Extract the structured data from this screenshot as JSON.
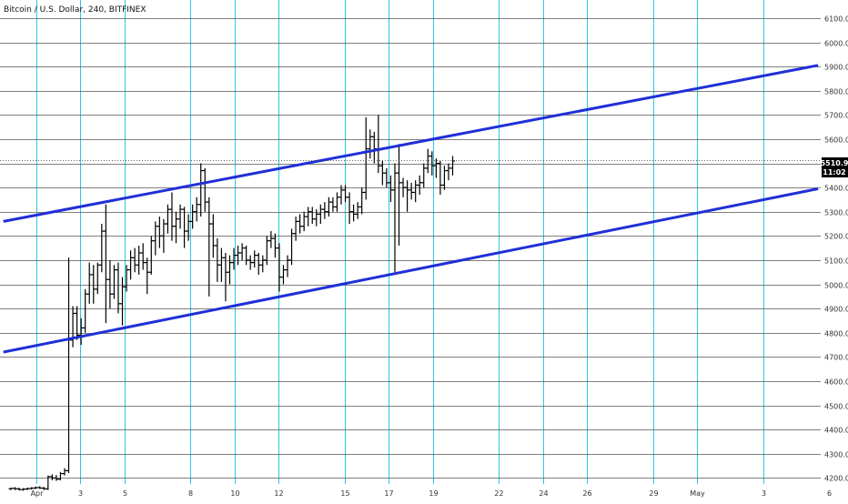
{
  "header": {
    "title": "Bitcoin / U.S. Dollar, 240, BITFINEX"
  },
  "price_badge": {
    "price": "5510.9",
    "countdown": "11:02"
  },
  "colors": {
    "grid_horizontal": "#555555",
    "grid_vertical": "#29c9e6",
    "trendline": "#1f2fd6",
    "bar": "#000000",
    "badge_bg": "#000000",
    "badge_text": "#ffffff"
  },
  "chart_data": {
    "type": "ohlc",
    "title": "Bitcoin / U.S. Dollar, 240, BITFINEX",
    "ylim": [
      4175,
      6175
    ],
    "y_ticks": [
      "6100.0",
      "6000.0",
      "5900.0",
      "5800.0",
      "5700.0",
      "5600.0",
      "5500.0",
      "5400.0",
      "5300.0",
      "5200.0",
      "5100.0",
      "5000.0",
      "4900.0",
      "4800.0",
      "4700.0",
      "4600.0",
      "4500.0",
      "4400.0",
      "4300.0",
      "4200.0"
    ],
    "x_ticks": [
      {
        "label": "Apr",
        "day": 1
      },
      {
        "label": "3",
        "day": 3
      },
      {
        "label": "5",
        "day": 5
      },
      {
        "label": "8",
        "day": 8
      },
      {
        "label": "10",
        "day": 10
      },
      {
        "label": "12",
        "day": 12
      },
      {
        "label": "15",
        "day": 15
      },
      {
        "label": "17",
        "day": 17
      },
      {
        "label": "19",
        "day": 19
      },
      {
        "label": "22",
        "day": 22
      },
      {
        "label": "24",
        "day": 24
      },
      {
        "label": "26",
        "day": 26
      },
      {
        "label": "29",
        "day": 29
      },
      {
        "label": "May",
        "day": 31
      },
      {
        "label": "3",
        "day": 34
      },
      {
        "label": "6",
        "day": 37
      }
    ],
    "current_price": 5510.9,
    "trendlines": [
      {
        "name": "upper-channel",
        "from": [
          -0.5,
          5260
        ],
        "to": [
          36.5,
          5905
        ]
      },
      {
        "name": "lower-channel",
        "from": [
          -0.5,
          4720
        ],
        "to": [
          36.5,
          5395
        ]
      }
    ],
    "ohlc": [
      [
        4155,
        4160,
        4150,
        4157
      ],
      [
        4157,
        4162,
        4150,
        4155
      ],
      [
        4155,
        4160,
        4148,
        4152
      ],
      [
        4152,
        4158,
        4147,
        4154
      ],
      [
        4154,
        4160,
        4150,
        4156
      ],
      [
        4156,
        4162,
        4152,
        4158
      ],
      [
        4158,
        4165,
        4154,
        4160
      ],
      [
        4160,
        4166,
        4155,
        4158
      ],
      [
        4158,
        4163,
        4150,
        4155
      ],
      [
        4155,
        4210,
        4150,
        4205
      ],
      [
        4205,
        4215,
        4190,
        4200
      ],
      [
        4200,
        4212,
        4188,
        4195
      ],
      [
        4195,
        4225,
        4190,
        4218
      ],
      [
        4218,
        4240,
        4210,
        4230
      ],
      [
        4230,
        5110,
        4220,
        4770
      ],
      [
        4770,
        4910,
        4740,
        4880
      ],
      [
        4880,
        4910,
        4770,
        4790
      ],
      [
        4790,
        4860,
        4750,
        4820
      ],
      [
        4820,
        4980,
        4800,
        4960
      ],
      [
        4960,
        5090,
        4920,
        5040
      ],
      [
        5040,
        5080,
        4920,
        4980
      ],
      [
        4980,
        5090,
        4960,
        5080
      ],
      [
        5080,
        5250,
        5050,
        5220
      ],
      [
        5220,
        5330,
        4840,
        5020
      ],
      [
        5020,
        5100,
        4900,
        4960
      ],
      [
        4960,
        5080,
        4940,
        5060
      ],
      [
        5060,
        5090,
        4880,
        4920
      ],
      [
        4920,
        5030,
        4830,
        4990
      ],
      [
        4990,
        5080,
        4970,
        5060
      ],
      [
        5060,
        5140,
        5020,
        5110
      ],
      [
        5110,
        5150,
        5050,
        5080
      ],
      [
        5080,
        5160,
        5040,
        5130
      ],
      [
        5130,
        5170,
        5060,
        5090
      ],
      [
        5090,
        5110,
        4960,
        5050
      ],
      [
        5050,
        5200,
        5040,
        5180
      ],
      [
        5180,
        5260,
        5120,
        5240
      ],
      [
        5240,
        5280,
        5150,
        5200
      ],
      [
        5200,
        5270,
        5130,
        5250
      ],
      [
        5250,
        5330,
        5210,
        5310
      ],
      [
        5310,
        5380,
        5180,
        5240
      ],
      [
        5240,
        5300,
        5170,
        5270
      ],
      [
        5270,
        5330,
        5230,
        5310
      ],
      [
        5310,
        5320,
        5150,
        5220
      ],
      [
        5220,
        5290,
        5180,
        5260
      ],
      [
        5260,
        5330,
        5230,
        5300
      ],
      [
        5300,
        5360,
        5260,
        5330
      ],
      [
        5330,
        5500,
        5280,
        5470
      ],
      [
        5470,
        5480,
        5300,
        5340
      ],
      [
        5340,
        5360,
        4950,
        5250
      ],
      [
        5250,
        5290,
        5110,
        5160
      ],
      [
        5160,
        5190,
        5010,
        5080
      ],
      [
        5080,
        5150,
        5010,
        5110
      ],
      [
        5110,
        5130,
        4930,
        5050
      ],
      [
        5050,
        5120,
        5000,
        5090
      ],
      [
        5090,
        5150,
        5060,
        5120
      ],
      [
        5120,
        5160,
        5080,
        5130
      ],
      [
        5130,
        5170,
        5100,
        5150
      ],
      [
        5150,
        5160,
        5080,
        5100
      ],
      [
        5100,
        5120,
        5060,
        5090
      ],
      [
        5090,
        5140,
        5070,
        5120
      ],
      [
        5120,
        5130,
        5040,
        5080
      ],
      [
        5080,
        5120,
        5050,
        5100
      ],
      [
        5100,
        5200,
        5080,
        5180
      ],
      [
        5180,
        5220,
        5150,
        5190
      ],
      [
        5190,
        5210,
        5110,
        5150
      ],
      [
        5150,
        5170,
        4970,
        5030
      ],
      [
        5030,
        5080,
        5000,
        5060
      ],
      [
        5060,
        5120,
        5030,
        5100
      ],
      [
        5100,
        5230,
        5080,
        5210
      ],
      [
        5210,
        5280,
        5180,
        5260
      ],
      [
        5260,
        5290,
        5210,
        5240
      ],
      [
        5240,
        5300,
        5220,
        5280
      ],
      [
        5280,
        5320,
        5240,
        5300
      ],
      [
        5300,
        5320,
        5250,
        5270
      ],
      [
        5270,
        5310,
        5240,
        5290
      ],
      [
        5290,
        5330,
        5250,
        5310
      ],
      [
        5310,
        5340,
        5270,
        5300
      ],
      [
        5300,
        5360,
        5280,
        5340
      ],
      [
        5340,
        5360,
        5300,
        5320
      ],
      [
        5320,
        5380,
        5300,
        5360
      ],
      [
        5360,
        5410,
        5330,
        5390
      ],
      [
        5390,
        5410,
        5340,
        5360
      ],
      [
        5360,
        5380,
        5250,
        5300
      ],
      [
        5300,
        5330,
        5260,
        5290
      ],
      [
        5290,
        5340,
        5270,
        5320
      ],
      [
        5320,
        5400,
        5290,
        5380
      ],
      [
        5380,
        5690,
        5350,
        5560
      ],
      [
        5560,
        5640,
        5520,
        5610
      ],
      [
        5610,
        5630,
        5500,
        5560
      ],
      [
        5560,
        5700,
        5460,
        5490
      ],
      [
        5490,
        5510,
        5410,
        5460
      ],
      [
        5460,
        5480,
        5400,
        5420
      ],
      [
        5420,
        5450,
        5340,
        5390
      ],
      [
        5390,
        5500,
        5050,
        5460
      ],
      [
        5460,
        5580,
        5160,
        5420
      ],
      [
        5420,
        5440,
        5360,
        5400
      ],
      [
        5400,
        5430,
        5300,
        5390
      ],
      [
        5390,
        5420,
        5350,
        5380
      ],
      [
        5380,
        5430,
        5340,
        5410
      ],
      [
        5410,
        5450,
        5370,
        5420
      ],
      [
        5420,
        5500,
        5400,
        5480
      ],
      [
        5480,
        5560,
        5460,
        5530
      ],
      [
        5530,
        5550,
        5450,
        5490
      ],
      [
        5490,
        5520,
        5440,
        5500
      ],
      [
        5500,
        5510,
        5370,
        5410
      ],
      [
        5410,
        5490,
        5390,
        5470
      ],
      [
        5470,
        5500,
        5430,
        5480
      ],
      [
        5480,
        5530,
        5450,
        5510
      ]
    ]
  }
}
